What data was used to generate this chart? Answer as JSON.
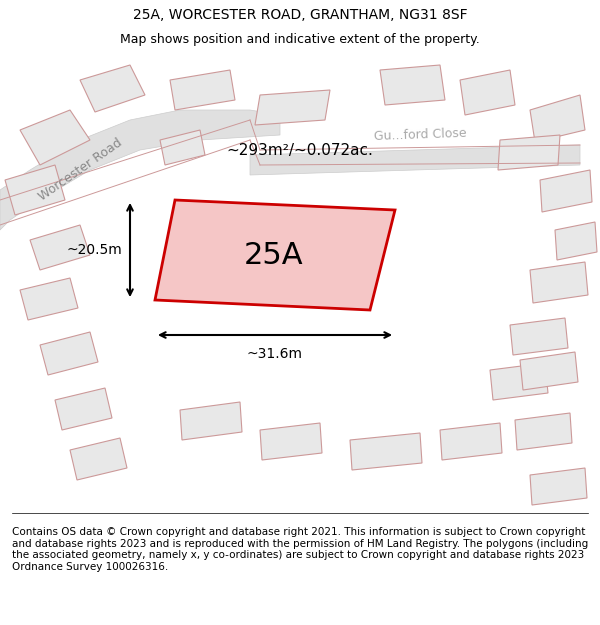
{
  "title_line1": "25A, WORCESTER ROAD, GRANTHAM, NG31 8SF",
  "title_line2": "Map shows position and indicative extent of the property.",
  "footer_text": "Contains OS data © Crown copyright and database right 2021. This information is subject to Crown copyright and database rights 2023 and is reproduced with the permission of HM Land Registry. The polygons (including the associated geometry, namely x, y co-ordinates) are subject to Crown copyright and database rights 2023 Ordnance Survey 100026316.",
  "background_color": "#f5f5f5",
  "map_bg": "#ffffff",
  "road_color": "#e8e8e8",
  "highlight_plot_color": "#f5c6c6",
  "highlight_plot_edge": "#cc0000",
  "other_plot_color": "#e8e8e8",
  "other_plot_edge": "#cc9999",
  "label_25A": "25A",
  "area_label": "~293m²/~0.072ac.",
  "road_label1": "Worcester Road",
  "road_label2": "Gu...ford Close",
  "dim_width": "~31.6m",
  "dim_height": "~20.5m",
  "title_fontsize": 10,
  "footer_fontsize": 7.5
}
